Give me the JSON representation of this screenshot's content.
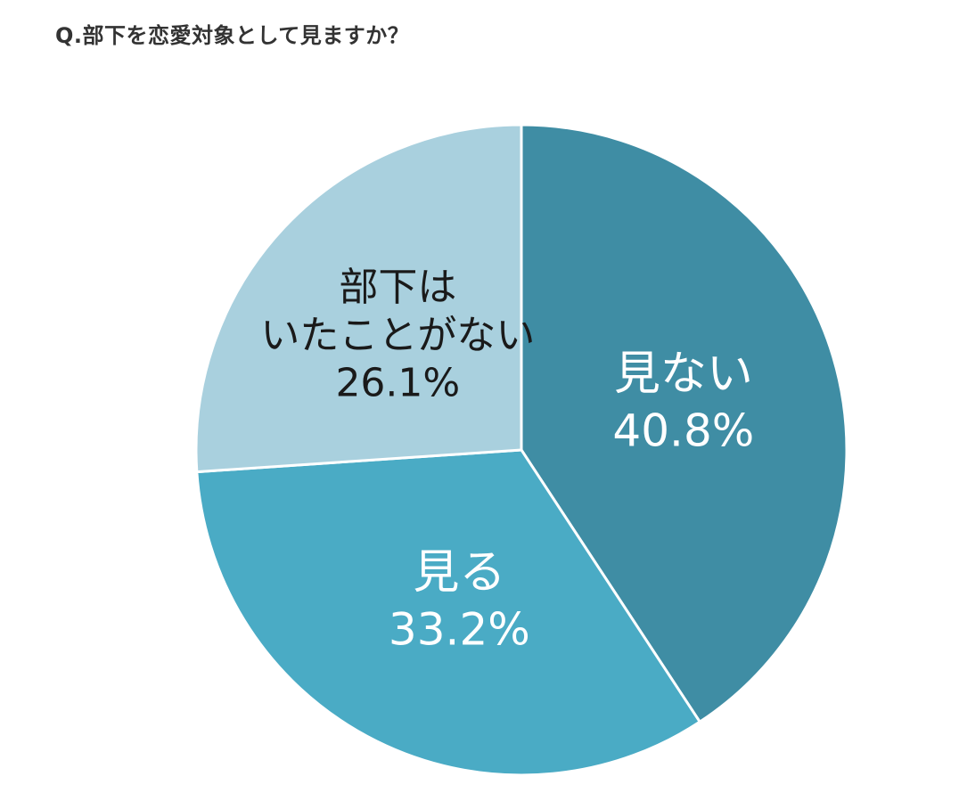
{
  "question": "Q.部下を恋愛対象として見ますか？",
  "chart_data": {
    "type": "pie",
    "start_angle_deg": 0,
    "direction": "clockwise",
    "slices": [
      {
        "category": "見ない",
        "value": 40.8,
        "value_label": "40.8%",
        "label_lines": [
          "見ない"
        ],
        "color": "#3f8da4",
        "label_color": "#ffffff"
      },
      {
        "category": "見る",
        "value": 33.2,
        "value_label": "33.2%",
        "label_lines": [
          "見る"
        ],
        "color": "#4aabc5",
        "label_color": "#ffffff"
      },
      {
        "category": "部下はいたことがない",
        "value": 26.1,
        "value_label": "26.1%",
        "label_lines": [
          "部下は",
          "いたことがない"
        ],
        "color": "#a9d0de",
        "label_color": "#1a1a1a"
      }
    ]
  }
}
